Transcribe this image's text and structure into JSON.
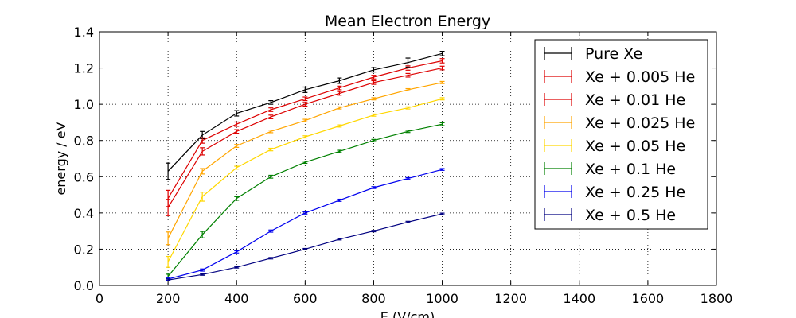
{
  "chart_data": {
    "type": "line",
    "title": "Mean Electron Energy",
    "xlabel": "E (V/cm)",
    "ylabel": "energy / eV",
    "xlim": [
      0,
      1800
    ],
    "ylim": [
      0.0,
      1.4
    ],
    "x_ticks": [
      "0",
      "200",
      "400",
      "600",
      "800",
      "1000",
      "1200",
      "1400",
      "1600",
      "1800"
    ],
    "y_ticks": [
      "0.0",
      "0.2",
      "0.4",
      "0.6",
      "0.8",
      "1.0",
      "1.2",
      "1.4"
    ],
    "grid": "dotted",
    "legend_position": "top-right",
    "x": [
      200,
      300,
      400,
      500,
      600,
      700,
      800,
      900,
      1000
    ],
    "series": [
      {
        "name": "Pure Xe",
        "color": "#000000",
        "values": [
          0.63,
          0.83,
          0.95,
          1.01,
          1.08,
          1.13,
          1.19,
          1.23,
          1.28
        ],
        "errors": [
          0.045,
          0.02,
          0.015,
          0.01,
          0.015,
          0.015,
          0.012,
          0.025,
          0.012
        ]
      },
      {
        "name": "Xe + 0.005 He",
        "color": "#dd0000",
        "values": [
          0.48,
          0.8,
          0.89,
          0.97,
          1.03,
          1.09,
          1.15,
          1.2,
          1.24
        ],
        "errors": [
          0.045,
          0.015,
          0.012,
          0.01,
          0.01,
          0.01,
          0.01,
          0.012,
          0.012
        ]
      },
      {
        "name": "Xe + 0.01 He",
        "color": "#dd0000",
        "values": [
          0.43,
          0.74,
          0.85,
          0.93,
          1.0,
          1.06,
          1.12,
          1.16,
          1.2
        ],
        "errors": [
          0.045,
          0.02,
          0.01,
          0.01,
          0.01,
          0.01,
          0.01,
          0.01,
          0.01
        ]
      },
      {
        "name": "Xe + 0.025 He",
        "color": "#ffa500",
        "values": [
          0.26,
          0.63,
          0.77,
          0.85,
          0.91,
          0.98,
          1.03,
          1.08,
          1.12
        ],
        "errors": [
          0.035,
          0.015,
          0.008,
          0.007,
          0.007,
          0.006,
          0.006,
          0.006,
          0.006
        ]
      },
      {
        "name": "Xe + 0.05 He",
        "color": "#ffd700",
        "values": [
          0.13,
          0.49,
          0.65,
          0.75,
          0.82,
          0.88,
          0.94,
          0.98,
          1.03
        ],
        "errors": [
          0.03,
          0.025,
          0.008,
          0.007,
          0.006,
          0.006,
          0.006,
          0.006,
          0.006
        ]
      },
      {
        "name": "Xe + 0.1 He",
        "color": "#008000",
        "values": [
          0.05,
          0.28,
          0.48,
          0.6,
          0.68,
          0.74,
          0.8,
          0.85,
          0.89
        ],
        "errors": [
          0.012,
          0.018,
          0.01,
          0.008,
          0.006,
          0.006,
          0.006,
          0.006,
          0.008
        ]
      },
      {
        "name": "Xe + 0.25 He",
        "color": "#0000ee",
        "values": [
          0.035,
          0.085,
          0.185,
          0.3,
          0.4,
          0.47,
          0.54,
          0.59,
          0.64
        ],
        "errors": [
          0.006,
          0.006,
          0.006,
          0.006,
          0.006,
          0.006,
          0.005,
          0.005,
          0.005
        ]
      },
      {
        "name": "Xe + 0.5 He",
        "color": "#000080",
        "values": [
          0.03,
          0.06,
          0.1,
          0.15,
          0.2,
          0.255,
          0.3,
          0.35,
          0.395
        ],
        "errors": [
          0.005,
          0.004,
          0.004,
          0.004,
          0.004,
          0.004,
          0.004,
          0.004,
          0.004
        ]
      }
    ]
  }
}
